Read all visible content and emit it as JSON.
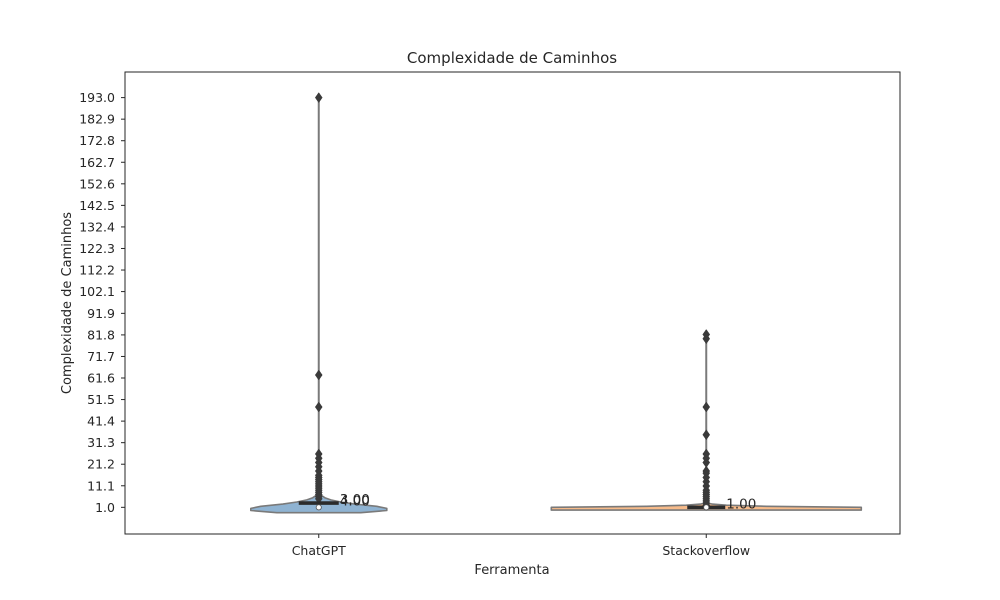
{
  "chart_data": {
    "type": "violin",
    "title": "Complexidade de Caminhos",
    "xlabel": "Ferramenta",
    "ylabel": "Complexidade de Caminhos",
    "categories": [
      "ChatGPT",
      "Stackoverflow"
    ],
    "yticks": [
      "1.0",
      "11.1",
      "21.2",
      "31.3",
      "41.4",
      "51.5",
      "61.6",
      "71.7",
      "81.8",
      "91.9",
      "102.1",
      "112.2",
      "122.3",
      "132.4",
      "142.5",
      "152.6",
      "162.7",
      "172.8",
      "182.9",
      "193.0"
    ],
    "ylim": [
      -11.5,
      205
    ],
    "grid": false,
    "colors": {
      "ChatGPT": "#8fb3d2",
      "Stackoverflow": "#f7bb8a",
      "outline": "#7a7a7a",
      "dark": "#3a3a3a"
    },
    "series": [
      {
        "category": "ChatGPT",
        "median": 3.0,
        "q1": 1.0,
        "q3": 3.0,
        "max": 193.0,
        "outliers": [
          193,
          63,
          48,
          26,
          24,
          22,
          20,
          18,
          16,
          15,
          14,
          13,
          12,
          11,
          10,
          9,
          8,
          7,
          6,
          5
        ],
        "annotations": [
          "3.00",
          "4.00"
        ]
      },
      {
        "category": "Stackoverflow",
        "median": 1.0,
        "q1": 1.0,
        "q3": 1.0,
        "max": 82.0,
        "outliers": [
          82,
          80,
          48,
          35,
          26,
          24,
          22,
          18,
          17,
          15,
          13,
          11,
          9,
          8,
          7,
          6,
          5,
          4,
          3,
          2
        ],
        "annotations": [
          "1.00"
        ]
      }
    ]
  }
}
